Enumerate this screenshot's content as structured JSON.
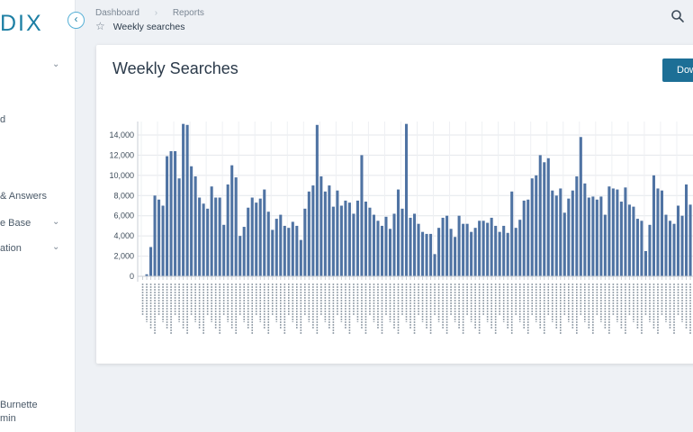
{
  "sidebar": {
    "logo": "DIX",
    "items": [
      {
        "label": "",
        "has_chevron": true
      },
      {
        "label": "d",
        "has_chevron": false
      },
      {
        "label": "",
        "has_chevron": false
      },
      {
        "label": "& Answers",
        "has_chevron": false
      },
      {
        "label": "e Base",
        "has_chevron": true
      },
      {
        "label": "ation",
        "has_chevron": true
      }
    ],
    "user_name": "Burnette",
    "user_role": "min"
  },
  "topbar": {
    "breadcrumbs": [
      "Dashboard",
      "Reports"
    ],
    "page_title": "Weekly searches"
  },
  "card": {
    "title": "Weekly Searches",
    "download_label": "Dow"
  },
  "colors": {
    "accent": "#1d7fa4",
    "bar": "#4f73a3",
    "button": "#1d6f96"
  },
  "chart_data": {
    "type": "bar",
    "title": "",
    "xlabel": "",
    "ylabel": "",
    "ylim": [
      0,
      15000
    ],
    "yticks": [
      0,
      2000,
      4000,
      6000,
      8000,
      10000,
      12000,
      14000
    ],
    "grid": true,
    "values": [
      0,
      200,
      2900,
      8000,
      7600,
      7000,
      11900,
      12400,
      12400,
      9700,
      15100,
      15000,
      10900,
      9900,
      7800,
      7200,
      6700,
      8900,
      7800,
      7800,
      5100,
      9100,
      11000,
      9800,
      4000,
      4900,
      6800,
      7800,
      7300,
      7700,
      8600,
      6400,
      4600,
      5700,
      6100,
      5000,
      4800,
      5400,
      5000,
      3600,
      6700,
      8400,
      9000,
      15000,
      9900,
      8400,
      9000,
      6900,
      8500,
      7000,
      7500,
      7300,
      6200,
      7500,
      12000,
      7400,
      6800,
      6100,
      5500,
      5000,
      5900,
      4700,
      6200,
      8600,
      6700,
      15100,
      5800,
      6200,
      5200,
      4400,
      4200,
      4200,
      2200,
      4800,
      5800,
      6000,
      4700,
      3900,
      6000,
      5200,
      5200,
      4400,
      4800,
      5500,
      5500,
      5300,
      5800,
      5000,
      4400,
      5000,
      4300,
      8400,
      4800,
      5600,
      7500,
      7600,
      9700,
      10000,
      12000,
      11300,
      11700,
      8500,
      8000,
      8700,
      6300,
      7700,
      8500,
      9900,
      13800,
      9200,
      7800,
      7900,
      7600,
      7900,
      6100,
      8900,
      8700,
      8600,
      7400,
      8800,
      7100,
      6900,
      5700,
      5500,
      2500,
      5100,
      10000,
      8700,
      8500,
      6100,
      5500,
      5200,
      7000,
      6000,
      9100,
      7100
    ]
  }
}
